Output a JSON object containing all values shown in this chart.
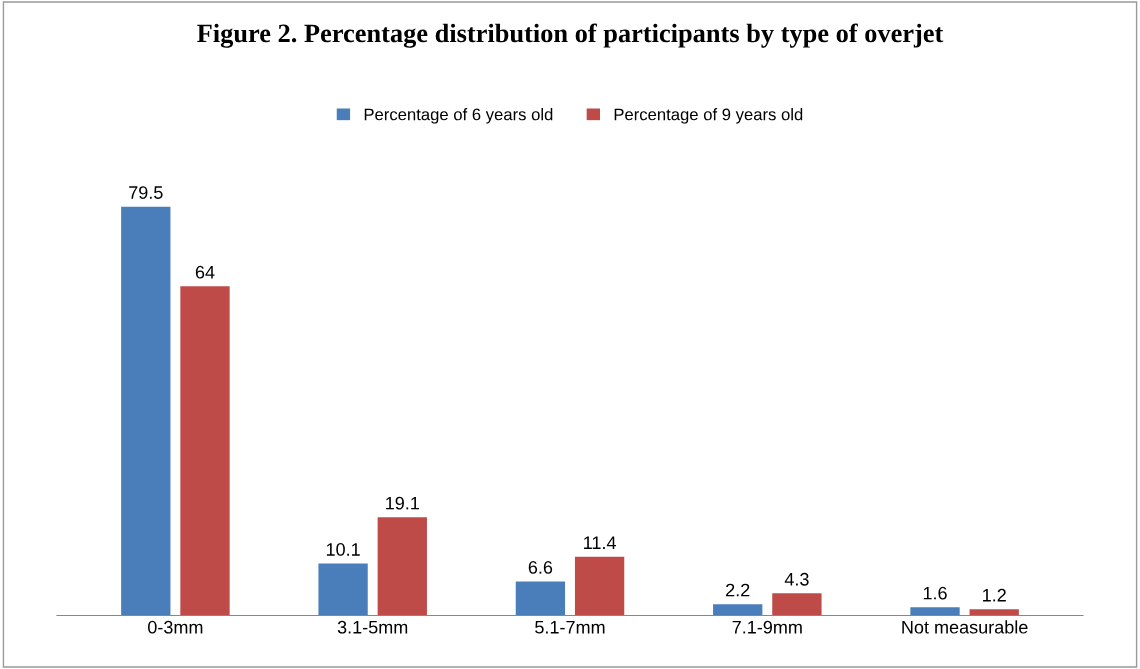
{
  "chart_data": {
    "type": "bar",
    "title": "Figure 2. Percentage distribution of participants by type of overjet",
    "categories": [
      "0-3mm",
      "3.1-5mm",
      "5.1-7mm",
      "7.1-9mm",
      "Not measurable"
    ],
    "series": [
      {
        "name": "Percentage of 6 years old",
        "color": "#4a7ebb",
        "values": [
          79.5,
          10.1,
          6.6,
          2.2,
          1.6
        ]
      },
      {
        "name": "Percentage of 9 years old",
        "color": "#be4b48",
        "values": [
          64,
          19.1,
          11.4,
          4.3,
          1.2
        ]
      }
    ],
    "data_labels": true,
    "legend": "top",
    "grid": false
  }
}
